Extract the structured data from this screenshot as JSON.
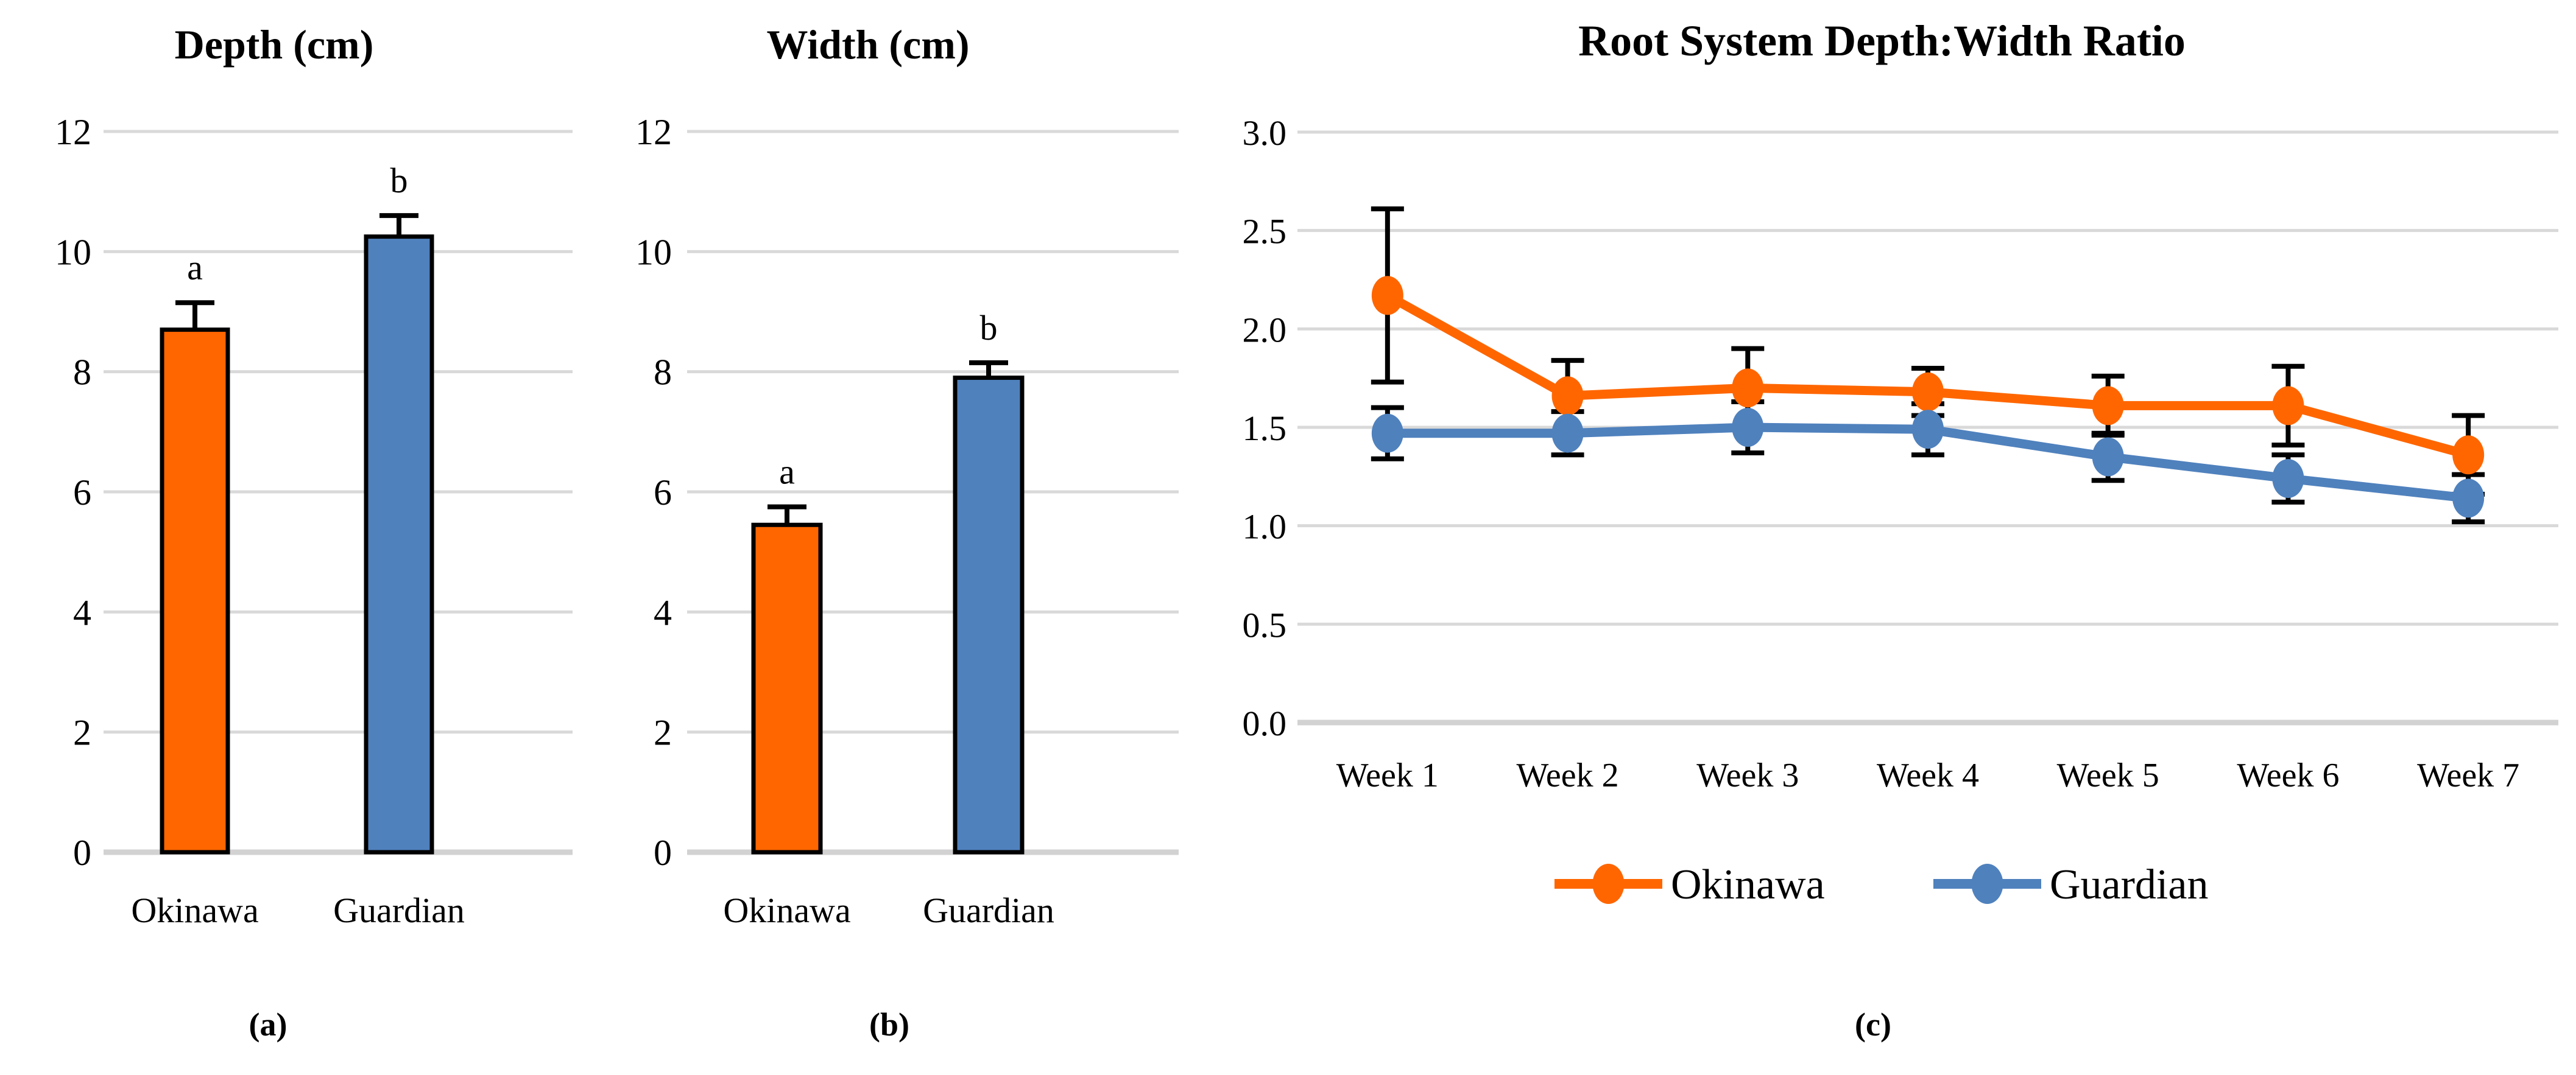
{
  "colors": {
    "okinawa": "#FF6600",
    "guardian": "#4F81BD",
    "gridline": "#D9D9D9",
    "axis": "#D2D2D2",
    "error_bar": "#000000"
  },
  "chart_data": [
    {
      "id": "a",
      "type": "bar",
      "title": "Depth (cm)",
      "caption": "(a)",
      "categories": [
        "Okinawa",
        "Guardian"
      ],
      "values": [
        8.7,
        10.25
      ],
      "errors": [
        0.45,
        0.35
      ],
      "sig_letters": [
        "a",
        "b"
      ],
      "bar_colors": [
        "#FF6600",
        "#4F81BD"
      ],
      "ylim": [
        0,
        12
      ],
      "yticks": [
        0,
        2,
        4,
        6,
        8,
        10,
        12
      ],
      "ytick_labels": [
        "0",
        "2",
        "4",
        "6",
        "8",
        "10",
        "12"
      ],
      "xlabel": "",
      "ylabel": "",
      "grid": true,
      "legend_position": "none"
    },
    {
      "id": "b",
      "type": "bar",
      "title": "Width (cm)",
      "caption": "(b)",
      "categories": [
        "Okinawa",
        "Guardian"
      ],
      "values": [
        5.45,
        7.9
      ],
      "errors": [
        0.3,
        0.25
      ],
      "sig_letters": [
        "a",
        "b"
      ],
      "bar_colors": [
        "#FF6600",
        "#4F81BD"
      ],
      "ylim": [
        0,
        12
      ],
      "yticks": [
        0,
        2,
        4,
        6,
        8,
        10,
        12
      ],
      "ytick_labels": [
        "0",
        "2",
        "4",
        "6",
        "8",
        "10",
        "12"
      ],
      "xlabel": "",
      "ylabel": "",
      "grid": true,
      "legend_position": "none"
    },
    {
      "id": "c",
      "type": "line",
      "title": "Root System Depth:Width Ratio",
      "caption": "(c)",
      "categories": [
        "Week 1",
        "Week 2",
        "Week 3",
        "Week 4",
        "Week 5",
        "Week 6",
        "Week 7"
      ],
      "series": [
        {
          "name": "Okinawa",
          "color": "#FF6600",
          "values": [
            2.17,
            1.66,
            1.7,
            1.68,
            1.61,
            1.61,
            1.36
          ],
          "errors": [
            0.44,
            0.18,
            0.2,
            0.12,
            0.15,
            0.2,
            0.2
          ]
        },
        {
          "name": "Guardian",
          "color": "#4F81BD",
          "values": [
            1.47,
            1.47,
            1.5,
            1.49,
            1.35,
            1.24,
            1.14
          ],
          "errors": [
            0.13,
            0.11,
            0.13,
            0.13,
            0.12,
            0.12,
            0.12
          ]
        }
      ],
      "ylim": [
        0,
        3
      ],
      "yticks": [
        0,
        0.5,
        1,
        1.5,
        2,
        2.5,
        3
      ],
      "ytick_labels": [
        "0.0",
        "0.5",
        "1.0",
        "1.5",
        "2.0",
        "2.5",
        "3.0"
      ],
      "xlabel": "",
      "ylabel": "",
      "grid": true,
      "legend_position": "bottom"
    }
  ]
}
